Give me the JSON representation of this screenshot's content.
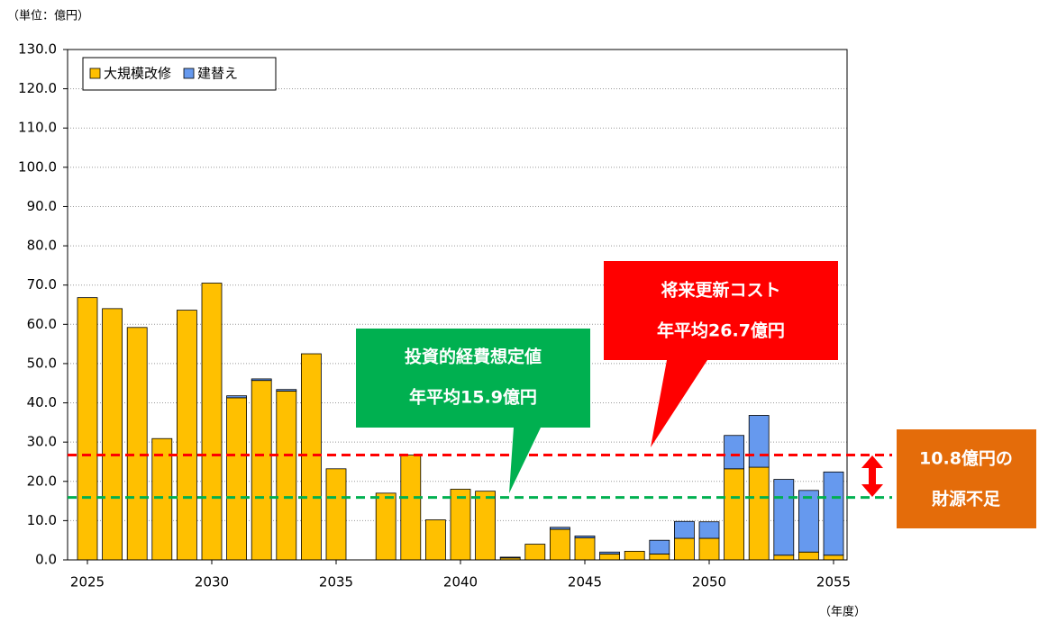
{
  "chart_data": {
    "type": "stacked_bar",
    "unit_label": "（単位：億円）",
    "x_label": "（年度）",
    "categories": [
      "2025",
      null,
      null,
      null,
      null,
      "2030",
      null,
      null,
      null,
      null,
      "2035",
      null,
      null,
      null,
      null,
      "2040",
      null,
      null,
      null,
      null,
      "2045",
      null,
      null,
      null,
      null,
      "2050",
      null,
      null,
      null,
      null,
      "2055"
    ],
    "series": [
      {
        "name": "大規模改修",
        "color": "#ffc000",
        "values": [
          66.8,
          64.0,
          59.2,
          30.9,
          63.6,
          70.5,
          41.3,
          45.7,
          43.0,
          52.5,
          23.2,
          0,
          17.0,
          26.7,
          10.2,
          18.0,
          17.5,
          0.5,
          4.0,
          7.8,
          5.6,
          1.5,
          2.2,
          1.5,
          5.5,
          5.5,
          23.2,
          23.6,
          1.2,
          2.0,
          1.2
        ]
      },
      {
        "name": "建替え",
        "color": "#6699ee",
        "values": [
          0,
          0,
          0,
          0,
          0,
          0,
          0.5,
          0.4,
          0.4,
          0,
          0,
          0,
          0,
          0,
          0,
          0,
          0,
          0.2,
          0,
          0.5,
          0.5,
          0.5,
          0,
          3.5,
          4.3,
          4.2,
          8.5,
          13.2,
          19.3,
          15.7,
          21.2
        ]
      }
    ],
    "ylim": [
      0,
      130
    ],
    "yticks": [
      {
        "value": 0,
        "label": "0.0"
      },
      {
        "value": 10,
        "label": "10.0"
      },
      {
        "value": 20,
        "label": "20.0"
      },
      {
        "value": 30,
        "label": "30.0"
      },
      {
        "value": 40,
        "label": "40.0"
      },
      {
        "value": 50,
        "label": "50.0"
      },
      {
        "value": 60,
        "label": "60.0"
      },
      {
        "value": 70,
        "label": "70.0"
      },
      {
        "value": 80,
        "label": "80.0"
      },
      {
        "value": 90,
        "label": "90.0"
      },
      {
        "value": 100,
        "label": "100.0"
      },
      {
        "value": 110,
        "label": "110.0"
      },
      {
        "value": 120,
        "label": "120.0"
      },
      {
        "value": 130,
        "label": "130.0"
      }
    ],
    "grid": true,
    "legend": "upper left",
    "reference_lines": [
      {
        "value": 26.7,
        "color": "#ff0000"
      },
      {
        "value": 15.9,
        "color": "#00b050"
      }
    ],
    "annotations": [
      "投資的経費想定値",
      "年平均15.9億円",
      "将来更新コスト",
      "年平均26.7億円",
      "10.8億円の",
      "財源不足"
    ]
  }
}
